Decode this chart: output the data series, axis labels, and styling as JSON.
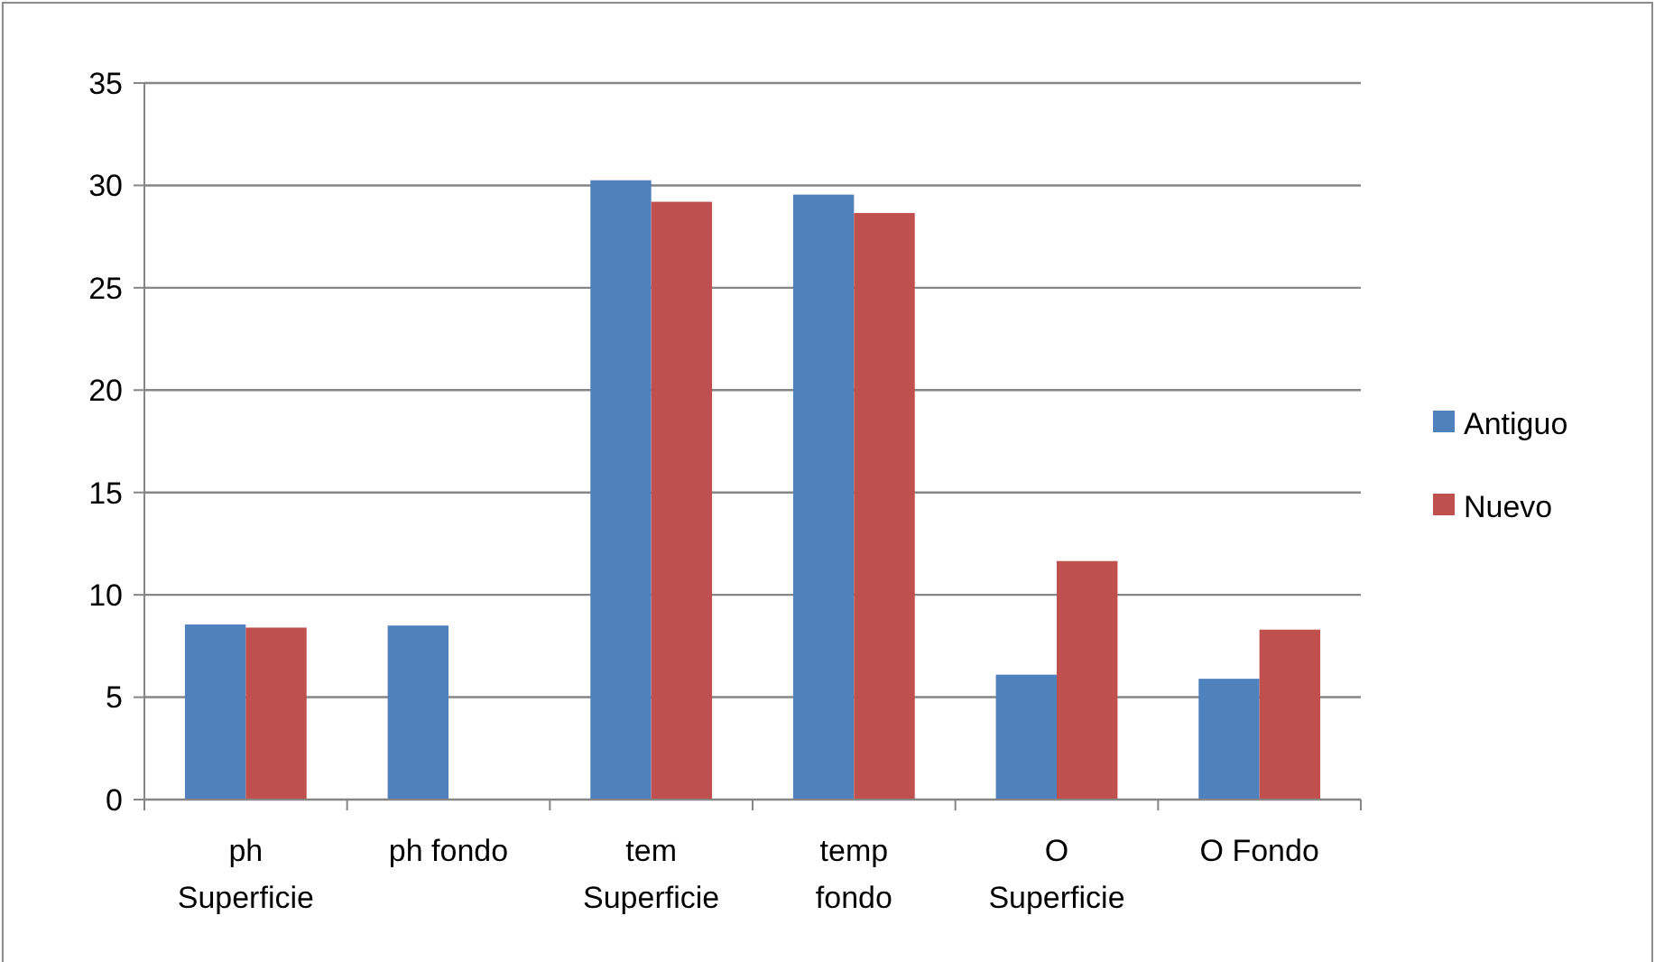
{
  "chart_data": {
    "type": "bar",
    "categories": [
      "ph Superficie",
      "ph fondo",
      "tem Superficie",
      "temp fondo",
      "O Superficie",
      "O Fondo"
    ],
    "series": [
      {
        "name": "Antiguo",
        "color": "#4f81bd",
        "values": [
          8.55,
          8.5,
          30.25,
          29.55,
          6.1,
          5.9
        ]
      },
      {
        "name": "Nuevo",
        "color": "#c0504d",
        "values": [
          8.4,
          null,
          29.2,
          28.65,
          11.65,
          8.3
        ]
      }
    ],
    "ylim": [
      0,
      35
    ],
    "yticks": [
      0,
      5,
      10,
      15,
      20,
      25,
      30,
      35
    ],
    "grid": "y",
    "legend": "right"
  }
}
